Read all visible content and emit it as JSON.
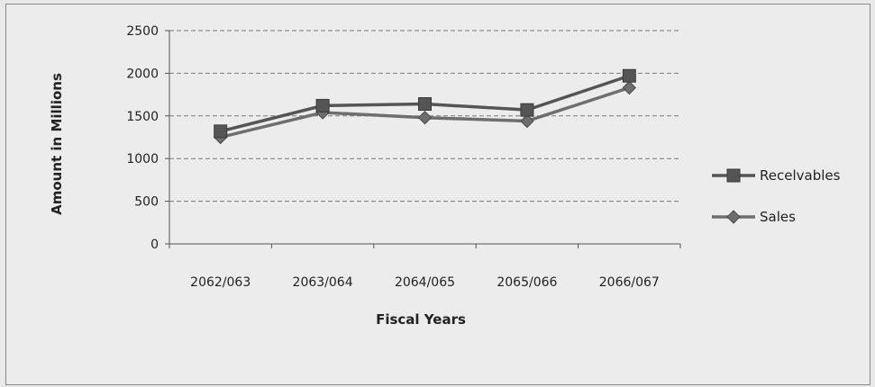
{
  "chart_data": {
    "type": "line",
    "title": "",
    "xlabel": "Fiscal Years",
    "ylabel": "Amount in Millions",
    "categories": [
      "2062/063",
      "2063/064",
      "2064/065",
      "2065/066",
      "2066/067"
    ],
    "ylim": [
      0,
      2500
    ],
    "yticks": [
      0,
      500,
      1000,
      1500,
      2000,
      2500
    ],
    "grid": true,
    "legend_position": "right",
    "series": [
      {
        "name": "Recelvables",
        "marker": "square",
        "color": "#555555",
        "values": [
          1320,
          1620,
          1640,
          1570,
          1970
        ]
      },
      {
        "name": "Sales",
        "marker": "diamond",
        "color": "#6e6e6e",
        "values": [
          1250,
          1540,
          1480,
          1440,
          1830
        ]
      }
    ]
  }
}
